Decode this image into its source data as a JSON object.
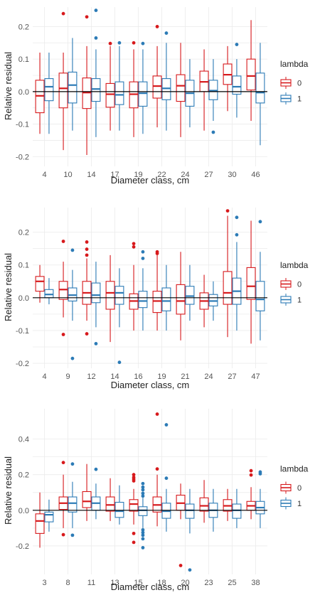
{
  "colors": {
    "lambda_0": "#d7191c",
    "lambda_1": "#2c7bb6",
    "grid": "#ebebeb"
  },
  "chart_data": [
    {
      "type": "boxplot",
      "xlabel": "Diameter class, cm",
      "ylabel": "Relative residual",
      "legend_title": "lambda",
      "legend_labels": [
        "0",
        "1"
      ],
      "legend_position": "right",
      "grid": true,
      "ylim": [
        -0.23,
        0.26
      ],
      "yticks": [
        -0.2,
        -0.1,
        0.0,
        0.1,
        0.2
      ],
      "ytick_labels": [
        "-0.2",
        "-0.1",
        "0.0",
        "0.1",
        "0.2"
      ],
      "categories": [
        "4",
        "10",
        "14",
        "17",
        "19",
        "22",
        "24",
        "27",
        "30",
        "46"
      ],
      "series": [
        {
          "name": "0",
          "boxes": [
            {
              "lo": -0.13,
              "q1": -0.065,
              "med": -0.013,
              "q3": 0.035,
              "hi": 0.12,
              "outliers": []
            },
            {
              "lo": -0.18,
              "q1": -0.05,
              "med": 0.01,
              "q3": 0.057,
              "hi": 0.12,
              "outliers": [
                0.24
              ]
            },
            {
              "lo": -0.195,
              "q1": -0.052,
              "med": -0.003,
              "q3": 0.042,
              "hi": 0.14,
              "outliers": [
                0.23
              ]
            },
            {
              "lo": -0.12,
              "q1": -0.048,
              "med": -0.008,
              "q3": 0.025,
              "hi": 0.14,
              "outliers": [
                0.148
              ]
            },
            {
              "lo": -0.14,
              "q1": -0.05,
              "med": -0.008,
              "q3": 0.03,
              "hi": 0.13,
              "outliers": [
                0.15
              ]
            },
            {
              "lo": -0.11,
              "q1": -0.02,
              "med": 0.017,
              "q3": 0.048,
              "hi": 0.14,
              "outliers": [
                0.2
              ]
            },
            {
              "lo": -0.14,
              "q1": -0.03,
              "med": 0.018,
              "q3": 0.052,
              "hi": 0.15,
              "outliers": []
            },
            {
              "lo": -0.12,
              "q1": 0.0,
              "med": 0.03,
              "q3": 0.063,
              "hi": 0.13,
              "outliers": []
            },
            {
              "lo": -0.06,
              "q1": 0.022,
              "med": 0.052,
              "q3": 0.085,
              "hi": 0.14,
              "outliers": []
            },
            {
              "lo": -0.09,
              "q1": 0.005,
              "med": 0.048,
              "q3": 0.1,
              "hi": 0.22,
              "outliers": []
            }
          ]
        },
        {
          "name": "1",
          "boxes": [
            {
              "lo": -0.13,
              "q1": -0.028,
              "med": 0.015,
              "q3": 0.04,
              "hi": 0.12,
              "outliers": []
            },
            {
              "lo": -0.12,
              "q1": -0.035,
              "med": 0.02,
              "q3": 0.06,
              "hi": 0.165,
              "outliers": []
            },
            {
              "lo": -0.14,
              "q1": -0.03,
              "med": 0.008,
              "q3": 0.04,
              "hi": 0.13,
              "outliers": [
                0.165,
                0.25
              ]
            },
            {
              "lo": -0.12,
              "q1": -0.04,
              "med": -0.01,
              "q3": 0.03,
              "hi": 0.14,
              "outliers": [
                0.15
              ]
            },
            {
              "lo": -0.13,
              "q1": -0.045,
              "med": -0.005,
              "q3": 0.03,
              "hi": 0.13,
              "outliers": [
                0.148
              ]
            },
            {
              "lo": -0.12,
              "q1": -0.025,
              "med": 0.01,
              "q3": 0.04,
              "hi": 0.15,
              "outliers": [
                0.18
              ]
            },
            {
              "lo": -0.11,
              "q1": -0.045,
              "med": -0.005,
              "q3": 0.035,
              "hi": 0.1,
              "outliers": []
            },
            {
              "lo": -0.09,
              "q1": -0.025,
              "med": 0.003,
              "q3": 0.035,
              "hi": 0.1,
              "outliers": [
                -0.125
              ]
            },
            {
              "lo": -0.08,
              "q1": -0.008,
              "med": 0.015,
              "q3": 0.048,
              "hi": 0.1,
              "outliers": [
                0.145
              ]
            },
            {
              "lo": -0.165,
              "q1": -0.035,
              "med": -0.003,
              "q3": 0.057,
              "hi": 0.15,
              "outliers": []
            }
          ]
        }
      ]
    },
    {
      "type": "boxplot",
      "xlabel": "Diameter class, cm",
      "ylabel": "Relative residual",
      "legend_title": "lambda",
      "legend_labels": [
        "0",
        "1"
      ],
      "legend_position": "right",
      "grid": true,
      "ylim": [
        -0.215,
        0.275
      ],
      "yticks": [
        -0.2,
        -0.1,
        0.0,
        0.1,
        0.2
      ],
      "ytick_labels": [
        "-0.2",
        "-0.1",
        "0.0",
        "0.1",
        "0.2"
      ],
      "categories": [
        "4",
        "9",
        "12",
        "14",
        "16",
        "19",
        "21",
        "24",
        "27",
        "47"
      ],
      "series": [
        {
          "name": "0",
          "boxes": [
            {
              "lo": -0.015,
              "q1": 0.02,
              "med": 0.05,
              "q3": 0.065,
              "hi": 0.1,
              "outliers": []
            },
            {
              "lo": -0.06,
              "q1": -0.005,
              "med": 0.025,
              "q3": 0.05,
              "hi": 0.11,
              "outliers": [
                0.172,
                -0.112
              ]
            },
            {
              "lo": -0.07,
              "q1": -0.02,
              "med": 0.015,
              "q3": 0.05,
              "hi": 0.12,
              "outliers": [
                0.17,
                0.148,
                0.13,
                -0.11
              ]
            },
            {
              "lo": -0.135,
              "q1": -0.035,
              "med": 0.015,
              "q3": 0.05,
              "hi": 0.13,
              "outliers": []
            },
            {
              "lo": -0.1,
              "q1": -0.035,
              "med": -0.01,
              "q3": 0.012,
              "hi": 0.1,
              "outliers": [
                0.165,
                0.155
              ]
            },
            {
              "lo": -0.1,
              "q1": -0.045,
              "med": -0.01,
              "q3": 0.02,
              "hi": 0.13,
              "outliers": [
                0.14,
                0.135
              ]
            },
            {
              "lo": -0.13,
              "q1": -0.05,
              "med": -0.01,
              "q3": 0.04,
              "hi": 0.14,
              "outliers": []
            },
            {
              "lo": -0.09,
              "q1": -0.035,
              "med": -0.01,
              "q3": 0.015,
              "hi": 0.07,
              "outliers": []
            },
            {
              "lo": -0.12,
              "q1": -0.02,
              "med": 0.015,
              "q3": 0.08,
              "hi": 0.25,
              "outliers": [
                0.265
              ]
            },
            {
              "lo": -0.14,
              "q1": -0.005,
              "med": 0.035,
              "q3": 0.092,
              "hi": 0.235,
              "outliers": []
            }
          ]
        },
        {
          "name": "1",
          "boxes": [
            {
              "lo": -0.02,
              "q1": 0.0,
              "med": 0.01,
              "q3": 0.025,
              "hi": 0.06,
              "outliers": []
            },
            {
              "lo": -0.07,
              "q1": -0.01,
              "med": 0.008,
              "q3": 0.03,
              "hi": 0.085,
              "outliers": [
                0.145,
                -0.185
              ]
            },
            {
              "lo": -0.09,
              "q1": -0.015,
              "med": 0.008,
              "q3": 0.045,
              "hi": 0.11,
              "outliers": [
                -0.14
              ]
            },
            {
              "lo": -0.09,
              "q1": -0.02,
              "med": 0.015,
              "q3": 0.035,
              "hi": 0.09,
              "outliers": [
                -0.197
              ]
            },
            {
              "lo": -0.1,
              "q1": -0.03,
              "med": -0.01,
              "q3": 0.02,
              "hi": 0.09,
              "outliers": [
                0.14,
                0.12
              ]
            },
            {
              "lo": -0.1,
              "q1": -0.04,
              "med": -0.01,
              "q3": 0.03,
              "hi": 0.1,
              "outliers": []
            },
            {
              "lo": -0.07,
              "q1": -0.02,
              "med": 0.005,
              "q3": 0.035,
              "hi": 0.1,
              "outliers": []
            },
            {
              "lo": -0.07,
              "q1": -0.025,
              "med": -0.01,
              "q3": 0.01,
              "hi": 0.05,
              "outliers": []
            },
            {
              "lo": -0.1,
              "q1": -0.02,
              "med": 0.02,
              "q3": 0.06,
              "hi": 0.17,
              "outliers": [
                0.245,
                0.192
              ]
            },
            {
              "lo": -0.13,
              "q1": -0.04,
              "med": -0.005,
              "q3": 0.05,
              "hi": 0.14,
              "outliers": [
                0.232
              ]
            }
          ]
        }
      ]
    },
    {
      "type": "boxplot",
      "xlabel": "Diameter class, cm",
      "ylabel": "Relative residual",
      "legend_title": "lambda",
      "legend_labels": [
        "0",
        "1"
      ],
      "legend_position": "right",
      "grid": true,
      "ylim": [
        -0.36,
        0.57
      ],
      "yticks": [
        -0.2,
        0.0,
        0.2,
        0.4
      ],
      "ytick_labels": [
        "-0.2",
        "0.0",
        "0.2",
        "0.4"
      ],
      "categories": [
        "3",
        "8",
        "11",
        "13",
        "15",
        "18",
        "20",
        "23",
        "25",
        "38"
      ],
      "series": [
        {
          "name": "0",
          "boxes": [
            {
              "lo": -0.21,
              "q1": -0.13,
              "med": -0.06,
              "q3": -0.02,
              "hi": 0.1,
              "outliers": []
            },
            {
              "lo": -0.1,
              "q1": 0.005,
              "med": 0.04,
              "q3": 0.075,
              "hi": 0.2,
              "outliers": [
                0.268,
                -0.137
              ]
            },
            {
              "lo": -0.06,
              "q1": 0.015,
              "med": 0.05,
              "q3": 0.105,
              "hi": 0.26,
              "outliers": []
            },
            {
              "lo": -0.06,
              "q1": -0.005,
              "med": 0.03,
              "q3": 0.075,
              "hi": 0.18,
              "outliers": []
            },
            {
              "lo": -0.08,
              "q1": -0.005,
              "med": 0.035,
              "q3": 0.06,
              "hi": 0.12,
              "outliers": [
                0.2,
                0.185,
                0.175,
                0.165,
                -0.13,
                -0.18
              ]
            },
            {
              "lo": -0.09,
              "q1": -0.01,
              "med": 0.03,
              "q3": 0.075,
              "hi": 0.2,
              "outliers": [
                0.54,
                0.232
              ]
            },
            {
              "lo": -0.05,
              "q1": 0.0,
              "med": 0.04,
              "q3": 0.085,
              "hi": 0.15,
              "outliers": [
                -0.31
              ]
            },
            {
              "lo": -0.07,
              "q1": -0.005,
              "med": 0.025,
              "q3": 0.07,
              "hi": 0.17,
              "outliers": []
            },
            {
              "lo": -0.06,
              "q1": -0.005,
              "med": 0.025,
              "q3": 0.06,
              "hi": 0.12,
              "outliers": []
            },
            {
              "lo": -0.05,
              "q1": 0.0,
              "med": 0.025,
              "q3": 0.05,
              "hi": 0.13,
              "outliers": [
                0.222,
                0.198
              ]
            }
          ]
        },
        {
          "name": "1",
          "boxes": [
            {
              "lo": -0.12,
              "q1": -0.065,
              "med": -0.025,
              "q3": -0.01,
              "hi": 0.06,
              "outliers": []
            },
            {
              "lo": -0.1,
              "q1": -0.01,
              "med": 0.04,
              "q3": 0.075,
              "hi": 0.16,
              "outliers": [
                0.26,
                -0.14
              ]
            },
            {
              "lo": -0.05,
              "q1": 0.0,
              "med": 0.04,
              "q3": 0.075,
              "hi": 0.15,
              "outliers": [
                0.23
              ]
            },
            {
              "lo": -0.08,
              "q1": -0.04,
              "med": -0.005,
              "q3": 0.045,
              "hi": 0.14,
              "outliers": []
            },
            {
              "lo": -0.1,
              "q1": -0.03,
              "med": 0.0,
              "q3": 0.02,
              "hi": 0.07,
              "outliers": [
                0.15,
                0.13,
                0.115,
                0.095,
                0.08,
                -0.11,
                -0.125,
                -0.14,
                -0.16,
                -0.21
              ]
            },
            {
              "lo": -0.12,
              "q1": -0.045,
              "med": -0.005,
              "q3": 0.04,
              "hi": 0.12,
              "outliers": [
                0.48,
                0.18
              ]
            },
            {
              "lo": -0.13,
              "q1": -0.045,
              "med": 0.0,
              "q3": 0.035,
              "hi": 0.12,
              "outliers": [
                -0.335
              ]
            },
            {
              "lo": -0.12,
              "q1": -0.04,
              "med": 0.0,
              "q3": 0.04,
              "hi": 0.12,
              "outliers": []
            },
            {
              "lo": -0.1,
              "q1": -0.045,
              "med": 0.0,
              "q3": 0.035,
              "hi": 0.12,
              "outliers": []
            },
            {
              "lo": -0.1,
              "q1": -0.02,
              "med": 0.015,
              "q3": 0.05,
              "hi": 0.12,
              "outliers": [
                0.215,
                0.205
              ]
            }
          ]
        }
      ]
    }
  ]
}
